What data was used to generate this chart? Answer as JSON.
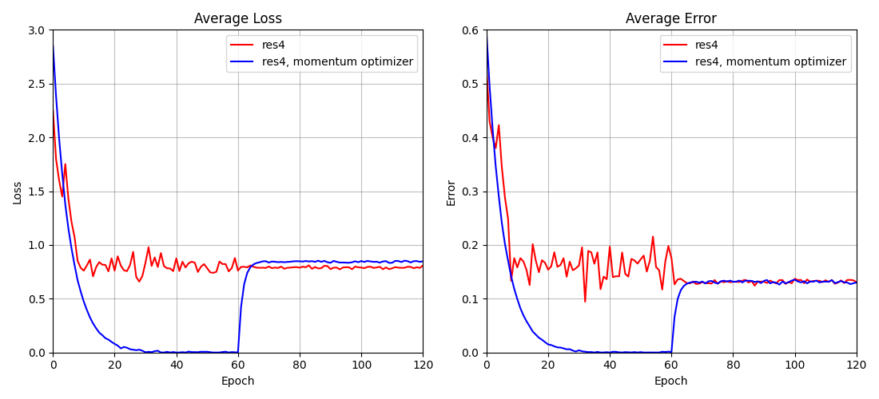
{
  "title_loss": "Average Loss",
  "title_error": "Average Error",
  "xlabel": "Epoch",
  "ylabel_loss": "Loss",
  "ylabel_error": "Error",
  "xlim": [
    0,
    120
  ],
  "ylim_loss": [
    0,
    3.0
  ],
  "ylim_error": [
    0,
    0.6
  ],
  "yticks_loss": [
    0.0,
    0.5,
    1.0,
    1.5,
    2.0,
    2.5,
    3.0
  ],
  "yticks_error": [
    0.0,
    0.1,
    0.2,
    0.3,
    0.4,
    0.5,
    0.6
  ],
  "xticks": [
    0,
    20,
    40,
    60,
    80,
    100,
    120
  ],
  "legend_labels": [
    "res4",
    "res4, momentum optimizer"
  ],
  "line_color_red": "#ff0000",
  "line_color_blue": "#0000ff",
  "line_width": 1.5,
  "n_epochs": 121
}
